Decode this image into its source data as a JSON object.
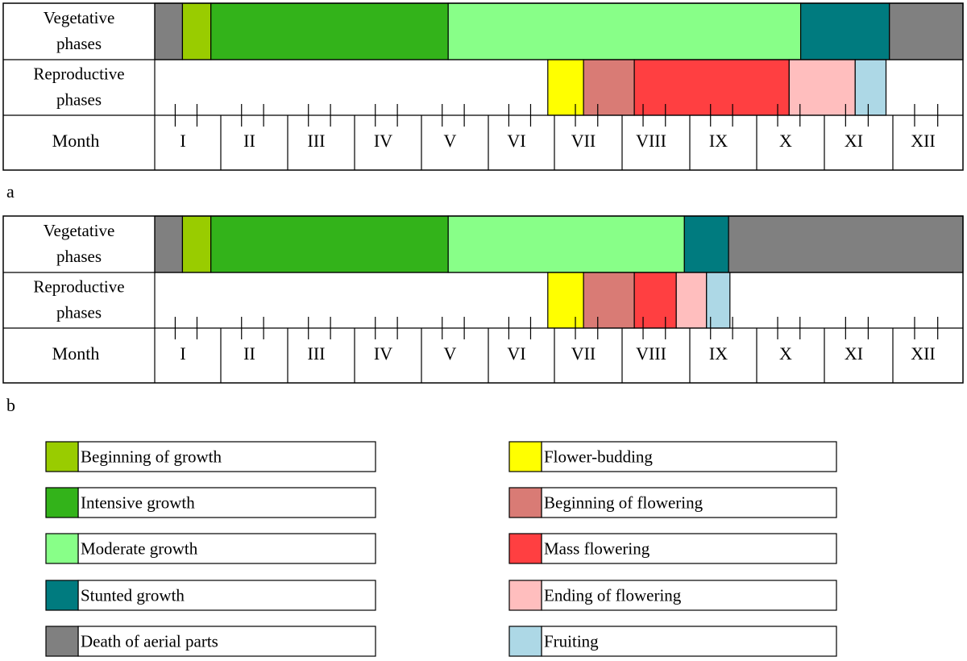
{
  "labels": {
    "vegetative": [
      "Vegetative",
      "phases"
    ],
    "reproductive": [
      "Reproductive",
      "phases"
    ],
    "month": "Month"
  },
  "months": [
    "I",
    "II",
    "III",
    "IV",
    "V",
    "VI",
    "VII",
    "VIII",
    "IX",
    "X",
    "XI",
    "XII"
  ],
  "colors": {
    "death": "#808080",
    "begin_growth": "#99CC00",
    "intensive": "#33B31A",
    "moderate": "#88FF88",
    "stunted": "#007B7F",
    "bud": "#FFFF00",
    "begin_flower": "#D97B75",
    "mass_flower": "#FF3F41",
    "end_flower": "#FFBEBE",
    "fruit": "#ADD8E6",
    "outline": "#000000"
  },
  "legend": {
    "left": [
      {
        "label": "Beginning of growth",
        "color": "#99CC00"
      },
      {
        "label": "Intensive growth",
        "color": "#33B31A"
      },
      {
        "label": "Moderate growth",
        "color": "#88FF88"
      },
      {
        "label": "Stunted growth",
        "color": "#007B7F"
      },
      {
        "label": "Death of aerial parts",
        "color": "#808080"
      }
    ],
    "right": [
      {
        "label": "Flower-budding",
        "color": "#FFFF00"
      },
      {
        "label": "Beginning of flowering",
        "color": "#D97B75"
      },
      {
        "label": "Mass flowering",
        "color": "#FF3F41"
      },
      {
        "label": "Ending of flowering",
        "color": "#FFBEBE"
      },
      {
        "label": "Fruiting",
        "color": "#ADD8E6"
      }
    ]
  },
  "panels": [
    {
      "id": "a",
      "tag": "a",
      "vegetative": [
        {
          "phase": "death",
          "start": 0.0,
          "end": 0.42
        },
        {
          "phase": "begin_growth",
          "start": 0.42,
          "end": 0.85
        },
        {
          "phase": "intensive",
          "start": 0.85,
          "end": 4.4
        },
        {
          "phase": "moderate",
          "start": 4.4,
          "end": 9.65
        },
        {
          "phase": "stunted",
          "start": 9.65,
          "end": 10.95
        },
        {
          "phase": "death",
          "start": 10.95,
          "end": 12.0
        }
      ],
      "reproductive": [
        {
          "phase": "bud",
          "start": 5.9,
          "end": 6.43
        },
        {
          "phase": "begin_flower",
          "start": 6.43,
          "end": 7.18
        },
        {
          "phase": "mass_flower",
          "start": 7.18,
          "end": 9.48
        },
        {
          "phase": "end_flower",
          "start": 9.48,
          "end": 10.45
        },
        {
          "phase": "fruit",
          "start": 10.45,
          "end": 10.9
        }
      ]
    },
    {
      "id": "b",
      "tag": "b",
      "vegetative": [
        {
          "phase": "death",
          "start": 0.0,
          "end": 0.42
        },
        {
          "phase": "begin_growth",
          "start": 0.42,
          "end": 0.85
        },
        {
          "phase": "intensive",
          "start": 0.85,
          "end": 4.4
        },
        {
          "phase": "moderate",
          "start": 4.4,
          "end": 7.92
        },
        {
          "phase": "stunted",
          "start": 7.92,
          "end": 8.58
        },
        {
          "phase": "death",
          "start": 8.58,
          "end": 12.0
        }
      ],
      "reproductive": [
        {
          "phase": "bud",
          "start": 5.9,
          "end": 6.43
        },
        {
          "phase": "begin_flower",
          "start": 6.43,
          "end": 7.18
        },
        {
          "phase": "mass_flower",
          "start": 7.18,
          "end": 7.8
        },
        {
          "phase": "end_flower",
          "start": 7.8,
          "end": 8.25
        },
        {
          "phase": "fruit",
          "start": 8.25,
          "end": 8.6
        }
      ]
    }
  ]
}
